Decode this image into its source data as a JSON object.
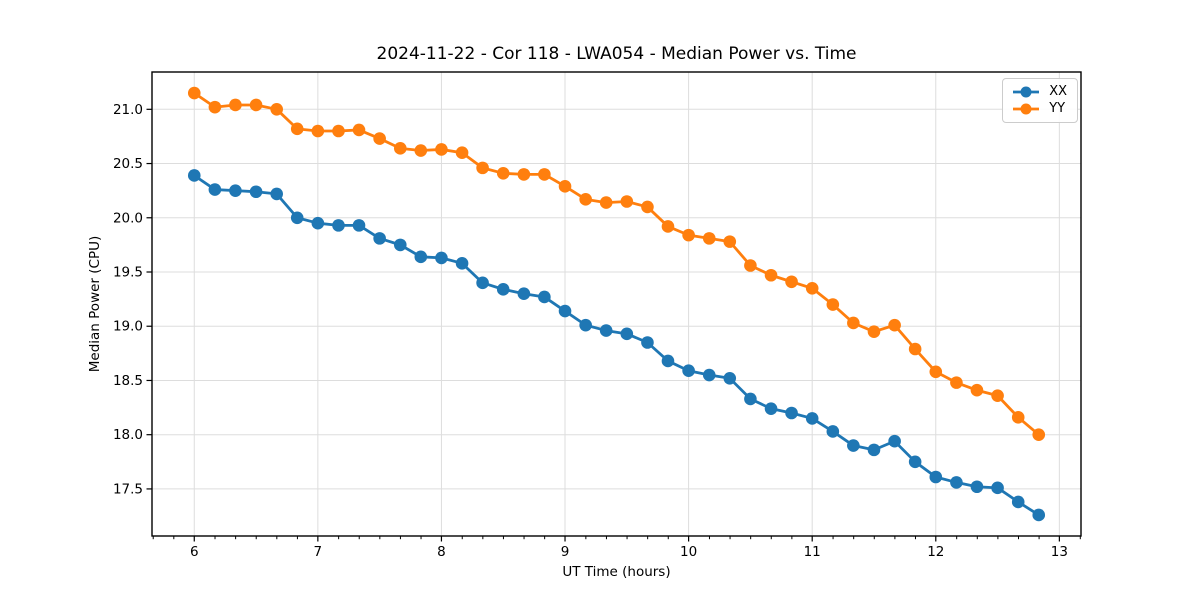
{
  "chart_data": {
    "type": "line",
    "title": "2024-11-22 - Cor 118 - LWA054 - Median Power vs. Time",
    "xlabel": "UT Time (hours)",
    "ylabel": "Median Power (CPU)",
    "x": [
      6.0,
      6.167,
      6.333,
      6.5,
      6.667,
      6.833,
      7.0,
      7.167,
      7.333,
      7.5,
      7.667,
      7.833,
      8.0,
      8.167,
      8.333,
      8.5,
      8.667,
      8.833,
      9.0,
      9.167,
      9.333,
      9.5,
      9.667,
      9.833,
      10.0,
      10.167,
      10.333,
      10.5,
      10.667,
      10.833,
      11.0,
      11.167,
      11.333,
      11.5,
      11.667,
      11.833,
      12.0,
      12.167,
      12.333,
      12.5,
      12.667,
      12.833
    ],
    "series": [
      {
        "name": "XX",
        "color": "#1f77b4",
        "values": [
          20.39,
          20.26,
          20.25,
          20.24,
          20.22,
          20.0,
          19.95,
          19.93,
          19.93,
          19.81,
          19.75,
          19.64,
          19.63,
          19.58,
          19.4,
          19.34,
          19.3,
          19.27,
          19.14,
          19.01,
          18.96,
          18.93,
          18.85,
          18.68,
          18.59,
          18.55,
          18.52,
          18.33,
          18.24,
          18.2,
          18.15,
          18.03,
          17.9,
          17.86,
          17.94,
          17.75,
          17.61,
          17.56,
          17.52,
          17.51,
          17.38,
          17.26
        ]
      },
      {
        "name": "YY",
        "color": "#ff7f0e",
        "values": [
          21.15,
          21.02,
          21.04,
          21.04,
          21.0,
          20.82,
          20.8,
          20.8,
          20.81,
          20.73,
          20.64,
          20.62,
          20.63,
          20.6,
          20.46,
          20.41,
          20.4,
          20.4,
          20.29,
          20.17,
          20.14,
          20.15,
          20.1,
          19.92,
          19.84,
          19.81,
          19.78,
          19.56,
          19.47,
          19.41,
          19.35,
          19.2,
          19.03,
          18.95,
          19.01,
          18.79,
          18.58,
          18.48,
          18.41,
          18.36,
          18.16,
          18.0
        ]
      }
    ],
    "xlim": [
      5.658,
      13.175
    ],
    "ylim": [
      17.066,
      21.344
    ],
    "xticks": [
      6,
      7,
      8,
      9,
      10,
      11,
      12,
      13
    ],
    "yticks": [
      17.5,
      18.0,
      18.5,
      19.0,
      19.5,
      20.0,
      20.5,
      21.0
    ],
    "x_minor_tick_step": 0.1667,
    "grid": true,
    "legend_position": "upper right",
    "marker": "o",
    "colors": {
      "grid": "#dddddd",
      "axis": "#000000",
      "background": "#ffffff"
    }
  }
}
